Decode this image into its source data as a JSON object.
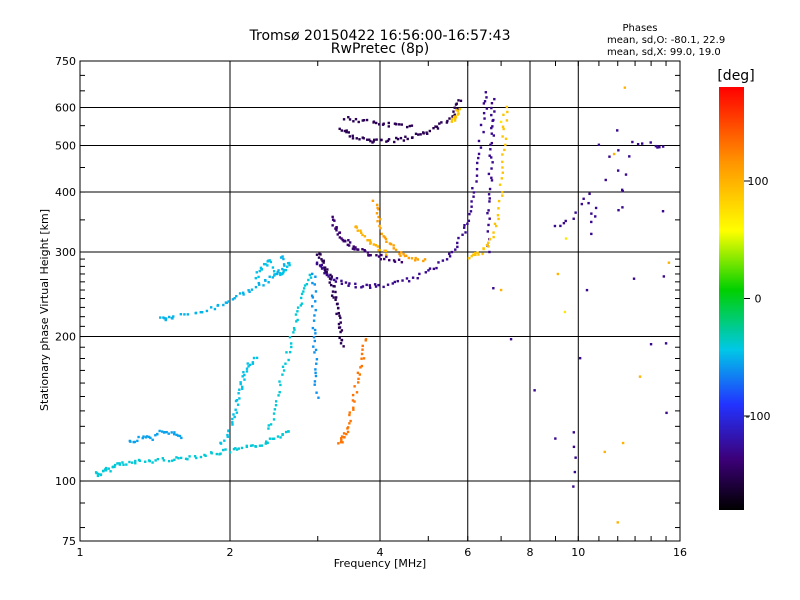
{
  "chart_data": {
    "type": "scatter",
    "title": "Tromsø 20150422 16:56:00-16:57:43",
    "subtitle": "RwPretec (8p)",
    "stats": {
      "heading": "Phases",
      "line_o": "mean, sd,O: -80.1, 22.9",
      "line_x": "mean, sd,X:  99.0, 19.0"
    },
    "xlabel": "Frequency [MHz]",
    "ylabel": "Stationary phase Virtual Height [km]",
    "x_scale": "log",
    "y_scale": "log",
    "xlim": [
      1,
      16
    ],
    "ylim": [
      75,
      750
    ],
    "x_ticks": [
      1,
      2,
      4,
      6,
      8,
      10,
      16
    ],
    "x_tick_labels": [
      "1",
      "2",
      "4",
      "6",
      "8",
      "10",
      "16"
    ],
    "x_grid": [
      2,
      4,
      6,
      8,
      10
    ],
    "y_ticks": [
      75,
      100,
      200,
      300,
      400,
      500,
      600,
      750
    ],
    "y_tick_labels": [
      "75",
      "100",
      "200",
      "300",
      "400",
      "500",
      "600",
      "750"
    ],
    "y_grid": [
      100,
      200,
      300,
      400,
      500,
      600
    ],
    "grid": true,
    "colorbar": {
      "label": "[deg]",
      "range": [
        -180,
        180
      ],
      "ticks": [
        100,
        0,
        -100
      ],
      "tick_labels": [
        "100",
        "0",
        "-100"
      ],
      "colormap": "rainbow"
    },
    "series": [
      {
        "phase": -40,
        "points": [
          [
            1.08,
            104
          ],
          [
            1.1,
            103
          ],
          [
            1.12,
            105
          ],
          [
            1.15,
            106
          ],
          [
            1.18,
            108
          ],
          [
            1.22,
            109
          ],
          [
            1.27,
            109
          ],
          [
            1.33,
            110
          ],
          [
            1.4,
            110
          ],
          [
            1.48,
            111
          ],
          [
            1.56,
            111
          ],
          [
            1.65,
            112
          ],
          [
            1.75,
            113
          ],
          [
            1.85,
            114
          ],
          [
            1.95,
            115
          ],
          [
            2.05,
            116
          ],
          [
            2.15,
            117
          ],
          [
            2.25,
            118
          ],
          [
            2.35,
            120
          ],
          [
            2.45,
            122
          ],
          [
            2.55,
            125
          ],
          [
            2.62,
            128
          ]
        ]
      },
      {
        "phase": -55,
        "points": [
          [
            1.25,
            121
          ],
          [
            1.3,
            122
          ],
          [
            1.35,
            124
          ],
          [
            1.4,
            123
          ],
          [
            1.45,
            126
          ],
          [
            1.5,
            127
          ],
          [
            1.55,
            125
          ],
          [
            1.6,
            123
          ]
        ]
      },
      {
        "phase": -45,
        "points": [
          [
            1.92,
            119
          ],
          [
            1.98,
            124
          ],
          [
            2.02,
            132
          ],
          [
            2.05,
            140
          ],
          [
            2.08,
            148
          ],
          [
            2.1,
            156
          ],
          [
            2.12,
            163
          ],
          [
            2.15,
            170
          ],
          [
            2.2,
            176
          ],
          [
            2.25,
            180
          ]
        ]
      },
      {
        "phase": -40,
        "points": [
          [
            2.4,
            128
          ],
          [
            2.45,
            137
          ],
          [
            2.5,
            150
          ],
          [
            2.55,
            165
          ],
          [
            2.6,
            180
          ],
          [
            2.65,
            195
          ],
          [
            2.7,
            210
          ],
          [
            2.75,
            225
          ],
          [
            2.8,
            240
          ],
          [
            2.85,
            255
          ],
          [
            2.9,
            270
          ]
        ]
      },
      {
        "phase": -50,
        "points": [
          [
            1.45,
            218
          ],
          [
            1.5,
            218
          ],
          [
            1.55,
            220
          ],
          [
            1.7,
            223
          ],
          [
            1.8,
            227
          ],
          [
            1.9,
            232
          ],
          [
            2.0,
            238
          ],
          [
            2.1,
            244
          ],
          [
            2.2,
            250
          ],
          [
            2.3,
            256
          ],
          [
            2.4,
            262
          ],
          [
            2.5,
            270
          ],
          [
            2.55,
            280
          ],
          [
            2.55,
            295
          ]
        ]
      },
      {
        "phase": -45,
        "points": [
          [
            2.25,
            266
          ],
          [
            2.3,
            275
          ],
          [
            2.35,
            282
          ],
          [
            2.4,
            290
          ],
          [
            2.45,
            270
          ],
          [
            2.55,
            268
          ],
          [
            2.6,
            275
          ],
          [
            2.65,
            285
          ]
        ]
      },
      {
        "phase": -130,
        "points": [
          [
            3.0,
            285
          ],
          [
            3.05,
            280
          ],
          [
            3.1,
            274
          ],
          [
            3.15,
            268
          ],
          [
            3.25,
            262
          ],
          [
            3.4,
            258
          ],
          [
            3.6,
            255
          ],
          [
            3.8,
            254
          ],
          [
            4.0,
            255
          ],
          [
            4.3,
            258
          ],
          [
            4.6,
            263
          ],
          [
            4.9,
            270
          ],
          [
            5.2,
            280
          ],
          [
            5.5,
            295
          ],
          [
            5.7,
            310
          ],
          [
            5.9,
            330
          ],
          [
            6.0,
            350
          ],
          [
            6.1,
            380
          ],
          [
            6.2,
            420
          ],
          [
            6.3,
            470
          ],
          [
            6.4,
            530
          ],
          [
            6.5,
            600
          ],
          [
            6.55,
            640
          ]
        ]
      },
      {
        "phase": -130,
        "points": [
          [
            6.6,
            300
          ],
          [
            6.62,
            340
          ],
          [
            6.64,
            380
          ],
          [
            6.66,
            420
          ],
          [
            6.68,
            460
          ],
          [
            6.7,
            500
          ],
          [
            6.72,
            540
          ],
          [
            6.74,
            580
          ],
          [
            6.76,
            620
          ]
        ]
      },
      {
        "phase": -140,
        "points": [
          [
            3.2,
            355
          ],
          [
            3.25,
            340
          ],
          [
            3.3,
            330
          ],
          [
            3.35,
            322
          ],
          [
            3.4,
            316
          ],
          [
            3.5,
            310
          ],
          [
            3.6,
            305
          ],
          [
            3.7,
            300
          ],
          [
            3.8,
            297
          ],
          [
            4.0,
            293
          ],
          [
            4.2,
            290
          ],
          [
            4.4,
            287
          ]
        ]
      },
      {
        "phase": -150,
        "points": [
          [
            3.0,
            300
          ],
          [
            3.05,
            290
          ],
          [
            3.1,
            280
          ],
          [
            3.15,
            270
          ],
          [
            3.2,
            260
          ],
          [
            3.22,
            250
          ],
          [
            3.25,
            240
          ],
          [
            3.28,
            230
          ],
          [
            3.3,
            220
          ],
          [
            3.32,
            210
          ],
          [
            3.34,
            200
          ],
          [
            3.36,
            190
          ]
        ]
      },
      {
        "phase": -150,
        "points": [
          [
            3.35,
            540
          ],
          [
            3.45,
            530
          ],
          [
            3.55,
            522
          ],
          [
            3.7,
            515
          ],
          [
            3.85,
            510
          ],
          [
            4.0,
            510
          ],
          [
            4.2,
            512
          ],
          [
            4.4,
            515
          ],
          [
            4.6,
            520
          ],
          [
            4.8,
            528
          ],
          [
            5.0,
            535
          ],
          [
            5.2,
            545
          ],
          [
            5.4,
            560
          ],
          [
            5.6,
            580
          ],
          [
            5.7,
            600
          ],
          [
            5.8,
            625
          ]
        ]
      },
      {
        "phase": -150,
        "points": [
          [
            3.4,
            570
          ],
          [
            3.6,
            565
          ],
          [
            3.8,
            560
          ],
          [
            4.0,
            555
          ],
          [
            4.2,
            552
          ],
          [
            4.4,
            550
          ],
          [
            4.6,
            552
          ]
        ]
      },
      {
        "phase": -60,
        "points": [
          [
            2.95,
            270
          ],
          [
            2.95,
            250
          ],
          [
            2.95,
            230
          ],
          [
            2.95,
            210
          ],
          [
            2.96,
            195
          ],
          [
            2.97,
            180
          ],
          [
            2.98,
            165
          ],
          [
            2.99,
            150
          ]
        ]
      },
      {
        "phase": 110,
        "points": [
          [
            3.9,
            380
          ],
          [
            3.95,
            360
          ],
          [
            4.0,
            340
          ],
          [
            4.1,
            320
          ],
          [
            4.2,
            310
          ],
          [
            4.35,
            300
          ],
          [
            4.5,
            295
          ],
          [
            4.7,
            290
          ],
          [
            4.9,
            288
          ]
        ]
      },
      {
        "phase": 100,
        "points": [
          [
            3.55,
            340
          ],
          [
            3.65,
            330
          ],
          [
            3.75,
            320
          ],
          [
            3.85,
            312
          ],
          [
            4.0,
            305
          ],
          [
            4.1,
            298
          ]
        ]
      },
      {
        "phase": 90,
        "points": [
          [
            6.0,
            290
          ],
          [
            6.2,
            295
          ],
          [
            6.4,
            300
          ],
          [
            6.6,
            310
          ],
          [
            6.8,
            330
          ],
          [
            6.9,
            360
          ],
          [
            7.0,
            400
          ],
          [
            7.05,
            450
          ],
          [
            7.1,
            500
          ],
          [
            7.12,
            550
          ],
          [
            7.15,
            600
          ]
        ]
      },
      {
        "phase": 130,
        "points": [
          [
            3.3,
            120
          ],
          [
            3.35,
            122
          ],
          [
            3.4,
            125
          ],
          [
            3.45,
            130
          ],
          [
            3.5,
            138
          ],
          [
            3.55,
            148
          ],
          [
            3.6,
            160
          ],
          [
            3.65,
            172
          ],
          [
            3.7,
            185
          ],
          [
            3.75,
            198
          ]
        ]
      },
      {
        "phase": 90,
        "points": [
          [
            5.6,
            560
          ],
          [
            5.65,
            570
          ],
          [
            5.7,
            580
          ],
          [
            5.75,
            590
          ]
        ]
      },
      {
        "phase": 70,
        "points": [
          [
            9.45,
            320
          ],
          [
            9.4,
            225
          ],
          [
            7.0,
            560
          ]
        ]
      },
      {
        "phase": -130,
        "points": [
          [
            9.0,
            340
          ],
          [
            9.7,
            350
          ],
          [
            10.5,
            400
          ],
          [
            10.6,
            330
          ],
          [
            12.0,
            540
          ],
          [
            12.2,
            370
          ],
          [
            12.9,
            510
          ],
          [
            14.2,
            500
          ],
          [
            14.8,
            500
          ],
          [
            15.0,
            140
          ],
          [
            11.1,
            500
          ],
          [
            9.85,
            127
          ],
          [
            9.85,
            97
          ],
          [
            6.7,
            250
          ]
        ]
      },
      {
        "phase": 100,
        "points": [
          [
            11.3,
            115
          ],
          [
            12.3,
            120
          ],
          [
            13.3,
            165
          ],
          [
            12.0,
            82
          ],
          [
            11.8,
            480
          ],
          [
            12.4,
            660
          ],
          [
            15.2,
            285
          ],
          [
            7.0,
            250
          ],
          [
            9.1,
            270
          ]
        ]
      }
    ]
  }
}
